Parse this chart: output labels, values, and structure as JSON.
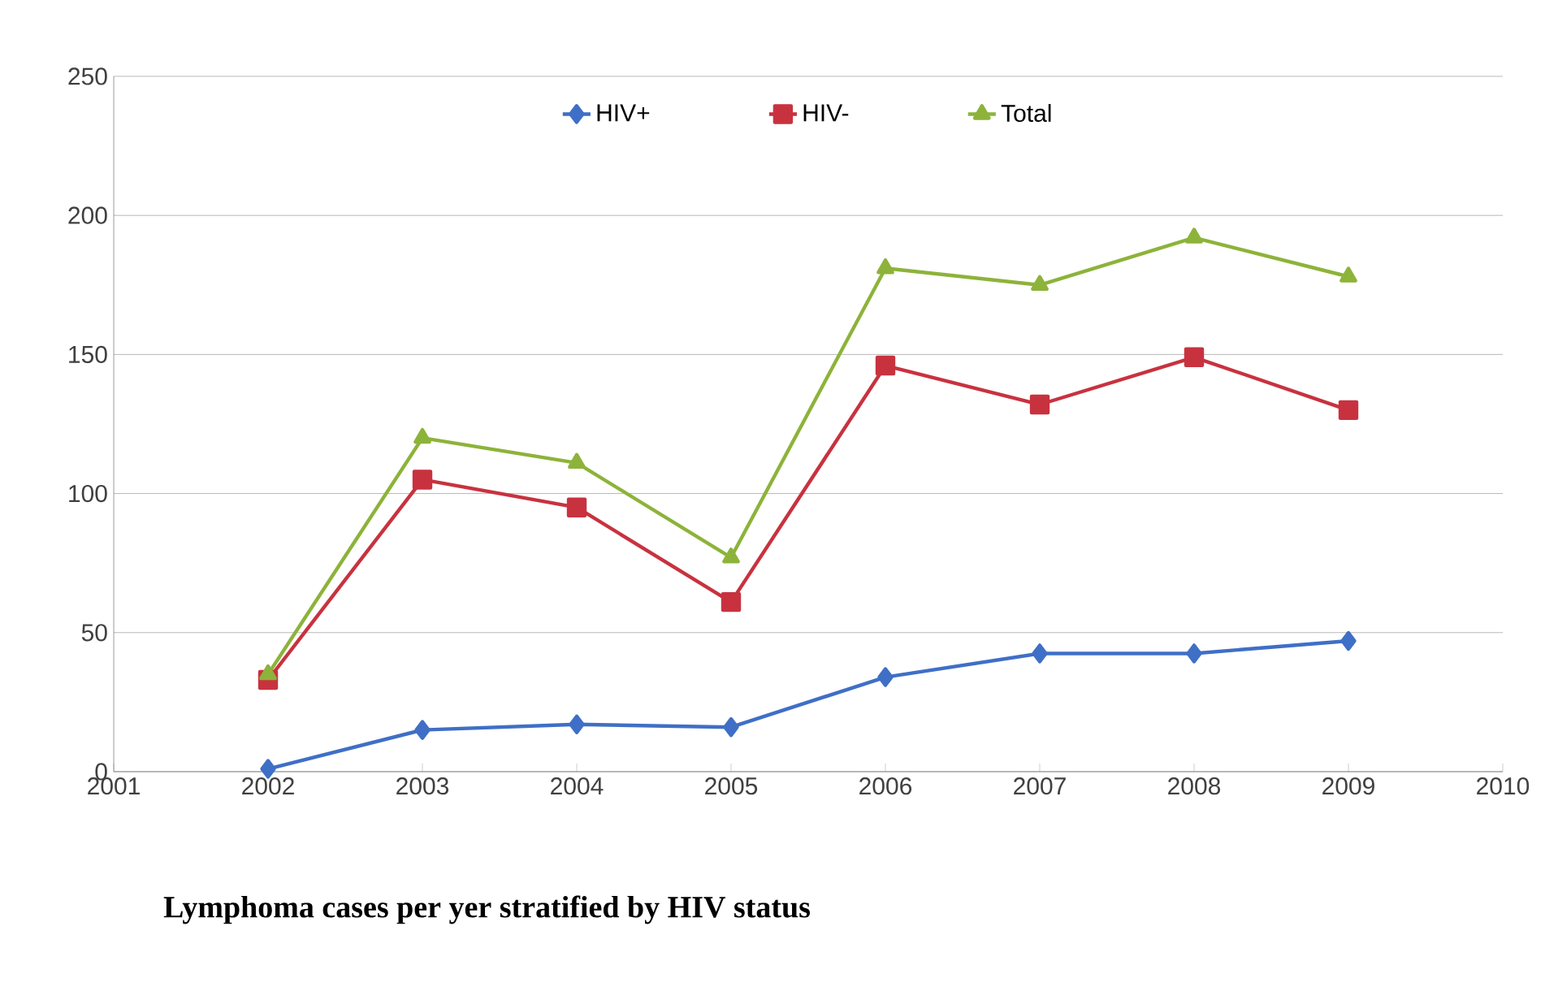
{
  "chart_data": {
    "type": "line",
    "x": [
      2002,
      2003,
      2004,
      2005,
      2006,
      2007,
      2008,
      2009
    ],
    "series": [
      {
        "name": "HIV+",
        "color": "#3f6fc6",
        "marker": "diamond",
        "values": [
          1,
          15,
          17,
          16,
          34,
          42.5,
          42.5,
          47
        ]
      },
      {
        "name": "HIV-",
        "color": "#c8323f",
        "marker": "square",
        "values": [
          33,
          105,
          95,
          61,
          146,
          132,
          149,
          130
        ]
      },
      {
        "name": "Total",
        "color": "#8db33a",
        "marker": "triangle",
        "values": [
          35,
          120,
          111,
          77,
          181,
          175,
          192,
          178
        ]
      }
    ],
    "xlim": [
      2001,
      2010
    ],
    "xticks": [
      2001,
      2002,
      2003,
      2004,
      2005,
      2006,
      2007,
      2008,
      2009,
      2010
    ],
    "ylim": [
      0,
      250
    ],
    "yticks": [
      0,
      50,
      100,
      150,
      200,
      250
    ],
    "grid": "y",
    "legend": "top",
    "line_style": "solid",
    "annotations": [
      "Lymphoma cases per yer stratified by HIV status"
    ]
  }
}
